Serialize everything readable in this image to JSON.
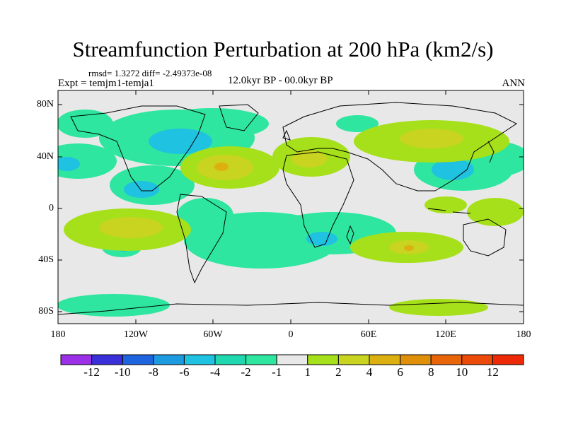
{
  "title": "Streamfunction Perturbation at 200 hPa (km2/s)",
  "stats": "rmsd= 1.3272 diff= -2.49373e-08",
  "experiment": "Expt = temjm1-temja1",
  "period": "12.0kyr BP - 00.0kyr BP",
  "season": "ANN",
  "lat_labels": [
    "80N",
    "40N",
    "0",
    "40S",
    "80S"
  ],
  "lon_labels": [
    "180",
    "120W",
    "60W",
    "0",
    "60E",
    "120E",
    "180"
  ],
  "colorbar": {
    "labels": [
      "-12",
      "-10",
      "-8",
      "-6",
      "-4",
      "-2",
      "-1",
      "1",
      "2",
      "4",
      "6",
      "8",
      "10",
      "12"
    ],
    "colors": [
      "#9b30e8",
      "#3a2fd9",
      "#1f64df",
      "#1c9be0",
      "#1fc2e0",
      "#20d8b0",
      "#2ee6a0",
      "#e8e8e8",
      "#a6e01a",
      "#c8d420",
      "#dcb011",
      "#e08f08",
      "#e8650a",
      "#ec4a08",
      "#ee2a06"
    ]
  },
  "colors": {
    "neutral": "#e8e8e8",
    "neg_light": "#2ee6a0",
    "neg_mid": "#1fc2e0",
    "pos_light": "#a6e01a",
    "pos_mid": "#c8d420",
    "pos_strong": "#dcb011"
  }
}
